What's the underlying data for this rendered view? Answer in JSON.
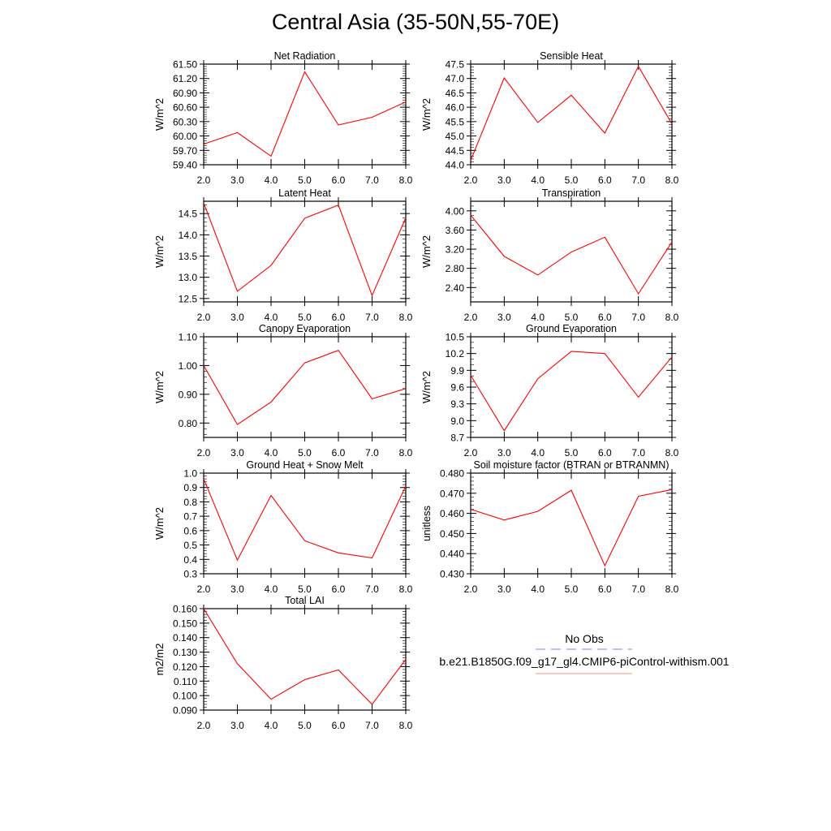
{
  "title": "Central Asia (35-50N,55-70E)",
  "legend": {
    "obs_label": "No Obs",
    "model_label": "b.e21.B1850G.f09_g17_gl4.CMIP6-piControl-withism.001",
    "obs_color": "#7b86ff",
    "model_color": "#ff0000"
  },
  "chart_data": [
    {
      "type": "line",
      "title": "Net Radiation",
      "ylabel": "W/m^2",
      "x": [
        2,
        3,
        4,
        5,
        6,
        7,
        8
      ],
      "xticks": [
        "2.0",
        "3.0",
        "4.0",
        "5.0",
        "6.0",
        "7.0",
        "8.0"
      ],
      "xlim": [
        2,
        8
      ],
      "ylim": [
        59.4,
        61.5
      ],
      "yticks": [
        "59.40",
        "59.70",
        "60.00",
        "60.30",
        "60.60",
        "60.90",
        "61.20",
        "61.50"
      ],
      "yminor": 0.05,
      "values": [
        59.83,
        60.07,
        59.58,
        61.34,
        60.23,
        60.39,
        60.71
      ]
    },
    {
      "type": "line",
      "title": "Sensible Heat",
      "ylabel": "W/m^2",
      "x": [
        2,
        3,
        4,
        5,
        6,
        7,
        8
      ],
      "xticks": [
        "2.0",
        "3.0",
        "4.0",
        "5.0",
        "6.0",
        "7.0",
        "8.0"
      ],
      "xlim": [
        2,
        8
      ],
      "ylim": [
        44.0,
        47.5
      ],
      "yticks": [
        "44.0",
        "44.5",
        "45.0",
        "45.5",
        "46.0",
        "46.5",
        "47.0",
        "47.5"
      ],
      "yminor": 0.1,
      "values": [
        44.15,
        47.02,
        45.47,
        46.42,
        45.1,
        47.42,
        45.42
      ]
    },
    {
      "type": "line",
      "title": "Latent Heat",
      "ylabel": "W/m^2",
      "x": [
        2,
        3,
        4,
        5,
        6,
        7,
        8
      ],
      "xticks": [
        "2.0",
        "3.0",
        "4.0",
        "5.0",
        "6.0",
        "7.0",
        "8.0"
      ],
      "xlim": [
        2,
        8
      ],
      "ylim": [
        12.42,
        14.79
      ],
      "yticks": [
        "12.5",
        "13.0",
        "13.5",
        "14.0",
        "14.5"
      ],
      "yminor": 0.1,
      "values": [
        14.75,
        12.67,
        13.28,
        14.39,
        14.7,
        12.57,
        14.4
      ]
    },
    {
      "type": "line",
      "title": "Transpiration",
      "ylabel": "W/m^2",
      "x": [
        2,
        3,
        4,
        5,
        6,
        7,
        8
      ],
      "xticks": [
        "2.0",
        "3.0",
        "4.0",
        "5.0",
        "6.0",
        "7.0",
        "8.0"
      ],
      "xlim": [
        2,
        8
      ],
      "ylim": [
        2.1,
        4.2
      ],
      "yticks": [
        "2.40",
        "2.80",
        "3.20",
        "3.60",
        "4.00"
      ],
      "yminor": 0.1,
      "values": [
        3.91,
        3.05,
        2.66,
        3.14,
        3.45,
        2.27,
        3.35
      ]
    },
    {
      "type": "line",
      "title": "Canopy Evaporation",
      "ylabel": "W/m^2",
      "x": [
        2,
        3,
        4,
        5,
        6,
        7,
        8
      ],
      "xticks": [
        "2.0",
        "3.0",
        "4.0",
        "5.0",
        "6.0",
        "7.0",
        "8.0"
      ],
      "xlim": [
        2,
        8
      ],
      "ylim": [
        0.75,
        1.1
      ],
      "yticks": [
        "0.80",
        "0.90",
        "1.00",
        "1.10"
      ],
      "yminor": 0.02,
      "values": [
        1.0,
        0.795,
        0.873,
        1.009,
        1.053,
        0.884,
        0.92
      ]
    },
    {
      "type": "line",
      "title": "Ground Evaporation",
      "ylabel": "W/m^2",
      "x": [
        2,
        3,
        4,
        5,
        6,
        7,
        8
      ],
      "xticks": [
        "2.0",
        "3.0",
        "4.0",
        "5.0",
        "6.0",
        "7.0",
        "8.0"
      ],
      "xlim": [
        2,
        8
      ],
      "ylim": [
        8.7,
        10.5
      ],
      "yticks": [
        "8.7",
        "9.0",
        "9.3",
        "9.6",
        "9.9",
        "10.2",
        "10.5"
      ],
      "yminor": 0.1,
      "values": [
        9.81,
        8.82,
        9.75,
        10.24,
        10.2,
        9.42,
        10.14
      ]
    },
    {
      "type": "line",
      "title": "Ground Heat + Snow Melt",
      "ylabel": "W/m^2",
      "x": [
        2,
        3,
        4,
        5,
        6,
        7,
        8
      ],
      "xticks": [
        "2.0",
        "3.0",
        "4.0",
        "5.0",
        "6.0",
        "7.0",
        "8.0"
      ],
      "xlim": [
        2,
        8
      ],
      "ylim": [
        0.3,
        1.0
      ],
      "yticks": [
        "0.3",
        "0.4",
        "0.5",
        "0.6",
        "0.7",
        "0.8",
        "0.9",
        "1.0"
      ],
      "yminor": 0.02,
      "values": [
        0.96,
        0.395,
        0.845,
        0.53,
        0.445,
        0.41,
        0.91
      ]
    },
    {
      "type": "line",
      "title": "Soil moisture factor (BTRAN or BTRANMN)",
      "ylabel": "unitless",
      "x": [
        2,
        3,
        4,
        5,
        6,
        7,
        8
      ],
      "xticks": [
        "2.0",
        "3.0",
        "4.0",
        "5.0",
        "6.0",
        "7.0",
        "8.0"
      ],
      "xlim": [
        2,
        8
      ],
      "ylim": [
        0.43,
        0.48
      ],
      "yticks": [
        "0.430",
        "0.440",
        "0.450",
        "0.460",
        "0.470",
        "0.480"
      ],
      "yminor": 0.002,
      "values": [
        0.462,
        0.4567,
        0.461,
        0.4715,
        0.434,
        0.4685,
        0.4718
      ]
    },
    {
      "type": "line",
      "title": "Total LAI",
      "ylabel": "m2/m2",
      "x": [
        2,
        3,
        4,
        5,
        6,
        7,
        8
      ],
      "xticks": [
        "2.0",
        "3.0",
        "4.0",
        "5.0",
        "6.0",
        "7.0",
        "8.0"
      ],
      "xlim": [
        2,
        8
      ],
      "ylim": [
        0.09,
        0.16
      ],
      "yticks": [
        "0.090",
        "0.100",
        "0.110",
        "0.120",
        "0.130",
        "0.140",
        "0.150",
        "0.160"
      ],
      "yminor": 0.002,
      "values": [
        0.16,
        0.122,
        0.0975,
        0.111,
        0.1177,
        0.094,
        0.125
      ]
    }
  ]
}
